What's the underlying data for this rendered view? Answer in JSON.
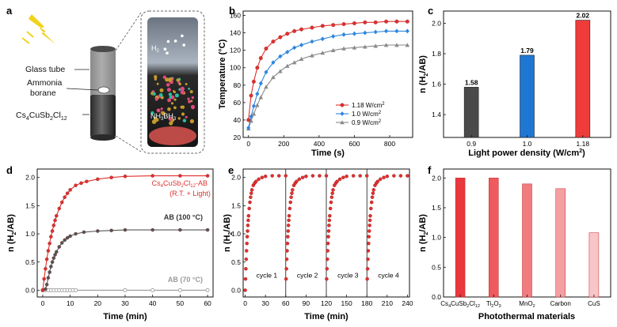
{
  "panels": {
    "a": {
      "letter": "a",
      "labels": {
        "glass": "Glass tube",
        "ammonia_1": "Ammonia",
        "ammonia_2": "borane",
        "perov_base": "Cs",
        "perov_s1": "4",
        "perov_mid1": "CuSb",
        "perov_s2": "2",
        "perov_mid2": "Cl",
        "perov_s3": "12"
      },
      "inset": {
        "h2_base": "H",
        "h2_sub": "2",
        "nh3_1": "NH",
        "nh3_s1": "3",
        "nh3_2": "BH",
        "nh3_s2": "3"
      },
      "colors": {
        "bolt": "#f2d21b",
        "tube": "#3d3d3d",
        "liquid": "#d9534f"
      }
    },
    "f": {
      "letter": "f",
      "ylabel": {
        "pre": "n (H",
        "sub": "2",
        "post": "/AB)"
      },
      "xlabel": "Photothermal materials",
      "cat_labels": [
        {
          "base": "Cs",
          "s1": "4",
          "m1": "CuSb",
          "s2": "2",
          "m2": "Cl",
          "s3": "12"
        },
        {
          "base": "Ti",
          "s1": "2",
          "m1": "O",
          "s2": "3",
          "m2": "",
          "s3": ""
        },
        {
          "base": "MnO",
          "s1": "2",
          "m1": "",
          "s2": "",
          "m2": "",
          "s3": ""
        },
        {
          "base": "Carbon",
          "s1": "",
          "m1": "",
          "s2": "",
          "m2": "",
          "s3": ""
        },
        {
          "base": "CuS",
          "s1": "",
          "m1": "",
          "s2": "",
          "m2": "",
          "s3": ""
        }
      ]
    }
  },
  "chart_data": [
    {
      "panel": "b",
      "type": "line",
      "ylabel": "Temperature (°C)",
      "xlabel": "Time (s)",
      "xlim": [
        -30,
        930
      ],
      "ylim": [
        20,
        165
      ],
      "xticks": [
        0,
        200,
        400,
        600,
        800
      ],
      "yticks": [
        20,
        40,
        60,
        80,
        100,
        120,
        140,
        160
      ],
      "legend_position": "lower-right",
      "series": [
        {
          "name": "1.18 W/cm",
          "sup": "2",
          "color": "#e0302d",
          "marker": "circle",
          "x": [
            0,
            15,
            30,
            50,
            70,
            100,
            140,
            180,
            220,
            260,
            300,
            360,
            420,
            480,
            540,
            600,
            660,
            720,
            780,
            840,
            900
          ],
          "y": [
            40,
            68,
            84,
            100,
            111,
            122,
            130,
            135,
            139,
            142,
            144,
            146,
            148,
            149,
            150,
            151,
            152,
            152,
            153,
            153,
            153
          ]
        },
        {
          "name": "1.0  W/cm",
          "sup": "2",
          "color": "#2e86de",
          "marker": "diamond",
          "x": [
            0,
            15,
            30,
            50,
            70,
            100,
            140,
            180,
            220,
            260,
            300,
            360,
            420,
            480,
            540,
            600,
            660,
            720,
            780,
            840,
            900
          ],
          "y": [
            31,
            44,
            56,
            70,
            82,
            95,
            106,
            113,
            118,
            123,
            126,
            130,
            133,
            136,
            138,
            139,
            140,
            141,
            142,
            142,
            142
          ]
        },
        {
          "name": "0.9  W/cm",
          "sup": "2",
          "color": "#8a8a8a",
          "marker": "triangle",
          "x": [
            0,
            15,
            30,
            50,
            70,
            100,
            140,
            180,
            220,
            260,
            300,
            360,
            420,
            480,
            540,
            600,
            660,
            720,
            780,
            840,
            900
          ],
          "y": [
            30,
            39,
            47,
            57,
            66,
            78,
            89,
            96,
            102,
            106,
            110,
            114,
            117,
            120,
            122,
            123,
            124,
            125,
            126,
            126,
            126
          ]
        }
      ]
    },
    {
      "panel": "c",
      "type": "bar",
      "ylabel": {
        "pre": "n (H",
        "sub": "2",
        "post": "/AB)"
      },
      "xlabel": "Light power density (W/cm",
      "xlabel_sup": "2",
      "xlabel_end": ")",
      "categories": [
        "0.9",
        "1.0",
        "1.18"
      ],
      "values": [
        1.58,
        1.79,
        2.02
      ],
      "value_labels": [
        "1.58",
        "1.79",
        "2.02"
      ],
      "colors": [
        "#4a4a4a",
        "#1f77d4",
        "#f03b3b"
      ],
      "ylim": [
        1.25,
        2.08
      ],
      "yticks": [
        1.4,
        1.6,
        1.8,
        2.0
      ],
      "ytick_labels": [
        "1.4",
        "1.6",
        "1.8",
        "2.0"
      ]
    },
    {
      "panel": "d",
      "type": "line",
      "ylabel": {
        "pre": "n (H",
        "sub": "2",
        "post": "/AB)"
      },
      "xlabel": "Time (min)",
      "xlim": [
        -2,
        62
      ],
      "ylim": [
        -0.12,
        2.15
      ],
      "xticks": [
        0,
        10,
        20,
        30,
        40,
        50,
        60
      ],
      "yticks": [
        0.0,
        0.5,
        1.0,
        1.5,
        2.0
      ],
      "ytick_labels": [
        "0.0",
        "0.5",
        "1.0",
        "1.5",
        "2.0"
      ],
      "series": [
        {
          "name": "Cs4CuSb2Cl12-AB",
          "label_parts": {
            "base": "Cs",
            "s1": "4",
            "m1": "CuSb",
            "s2": "2",
            "m2": "Cl",
            "s3": "12",
            "end": "-AB"
          },
          "label2": "(R.T. + Light)",
          "color": "#e0302d",
          "marker": "circle",
          "x": [
            0,
            0.5,
            1,
            1.5,
            2,
            2.5,
            3,
            3.5,
            4,
            4.5,
            5,
            6,
            7,
            8,
            9,
            10,
            12,
            14,
            16,
            20,
            25,
            30,
            40,
            50,
            60
          ],
          "y": [
            0,
            0.2,
            0.38,
            0.55,
            0.7,
            0.83,
            0.95,
            1.05,
            1.15,
            1.24,
            1.32,
            1.45,
            1.56,
            1.65,
            1.72,
            1.78,
            1.86,
            1.9,
            1.93,
            1.97,
            2.0,
            2.02,
            2.03,
            2.03,
            2.03
          ]
        },
        {
          "name": "AB (100 °C)",
          "color": "#555555",
          "marker": "circle",
          "x": [
            0,
            1,
            1.5,
            2,
            2.5,
            3,
            3.5,
            4,
            4.5,
            5,
            6,
            7,
            8,
            9,
            10,
            12,
            15,
            20,
            25,
            30,
            40,
            50,
            60
          ],
          "y": [
            0,
            0.02,
            0.1,
            0.22,
            0.32,
            0.42,
            0.5,
            0.57,
            0.63,
            0.68,
            0.77,
            0.84,
            0.89,
            0.93,
            0.96,
            1.0,
            1.03,
            1.05,
            1.06,
            1.07,
            1.07,
            1.07,
            1.07
          ]
        },
        {
          "name": "AB (70 °C)",
          "color": "#9a9a9a",
          "marker": "circle",
          "x": [
            0,
            1,
            2,
            3,
            4,
            5,
            6,
            7,
            8,
            9,
            10,
            11,
            12,
            30,
            40,
            50,
            60
          ],
          "y": [
            0,
            0,
            0,
            0,
            0,
            0,
            0,
            0,
            0,
            0,
            0,
            0,
            0,
            0,
            0,
            0,
            0
          ]
        }
      ]
    },
    {
      "panel": "e",
      "type": "scatter",
      "ylabel": {
        "pre": "n (H",
        "sub": "2",
        "post": "/AB)"
      },
      "xlabel": "Time (min)",
      "xlim": [
        -3,
        243
      ],
      "ylim": [
        -0.12,
        2.15
      ],
      "xticks": [
        0,
        30,
        60,
        90,
        120,
        150,
        180,
        210,
        240
      ],
      "yticks": [
        0.0,
        0.5,
        1.0,
        1.5,
        2.0
      ],
      "ytick_labels": [
        "0.0",
        "0.5",
        "1.0",
        "1.5",
        "2.0"
      ],
      "cycle_boundaries": [
        60,
        120,
        180
      ],
      "cycle_labels": [
        "cycle 1",
        "cycle 2",
        "cycle 3",
        "cycle 4"
      ],
      "color": "#e0302d",
      "cycle_t": [
        0,
        0.5,
        1,
        1.5,
        2,
        2.5,
        3,
        3.5,
        4,
        4.5,
        5,
        6,
        7,
        8,
        9,
        10,
        12,
        14,
        16,
        20,
        25,
        30,
        40,
        50,
        60
      ],
      "cycle_y": [
        0,
        0.2,
        0.38,
        0.55,
        0.7,
        0.83,
        0.95,
        1.05,
        1.15,
        1.24,
        1.32,
        1.45,
        1.56,
        1.65,
        1.72,
        1.78,
        1.86,
        1.9,
        1.93,
        1.97,
        2.0,
        2.02,
        2.03,
        2.03,
        2.03
      ]
    },
    {
      "panel": "f",
      "type": "bar",
      "categories": [
        "Cs4CuSb2Cl12",
        "Ti2O3",
        "MnO2",
        "Carbon",
        "CuS"
      ],
      "values": [
        2.0,
        2.0,
        1.9,
        1.82,
        1.08
      ],
      "colors": [
        "#e8383d",
        "#ee5a5e",
        "#f07c7f",
        "#f4a0a2",
        "#f8c6c8"
      ],
      "ylim": [
        0,
        2.15
      ],
      "yticks": [
        0.0,
        0.5,
        1.0,
        1.5,
        2.0
      ],
      "ytick_labels": [
        "0.0",
        "0.5",
        "1.0",
        "1.5",
        "2.0"
      ]
    }
  ]
}
